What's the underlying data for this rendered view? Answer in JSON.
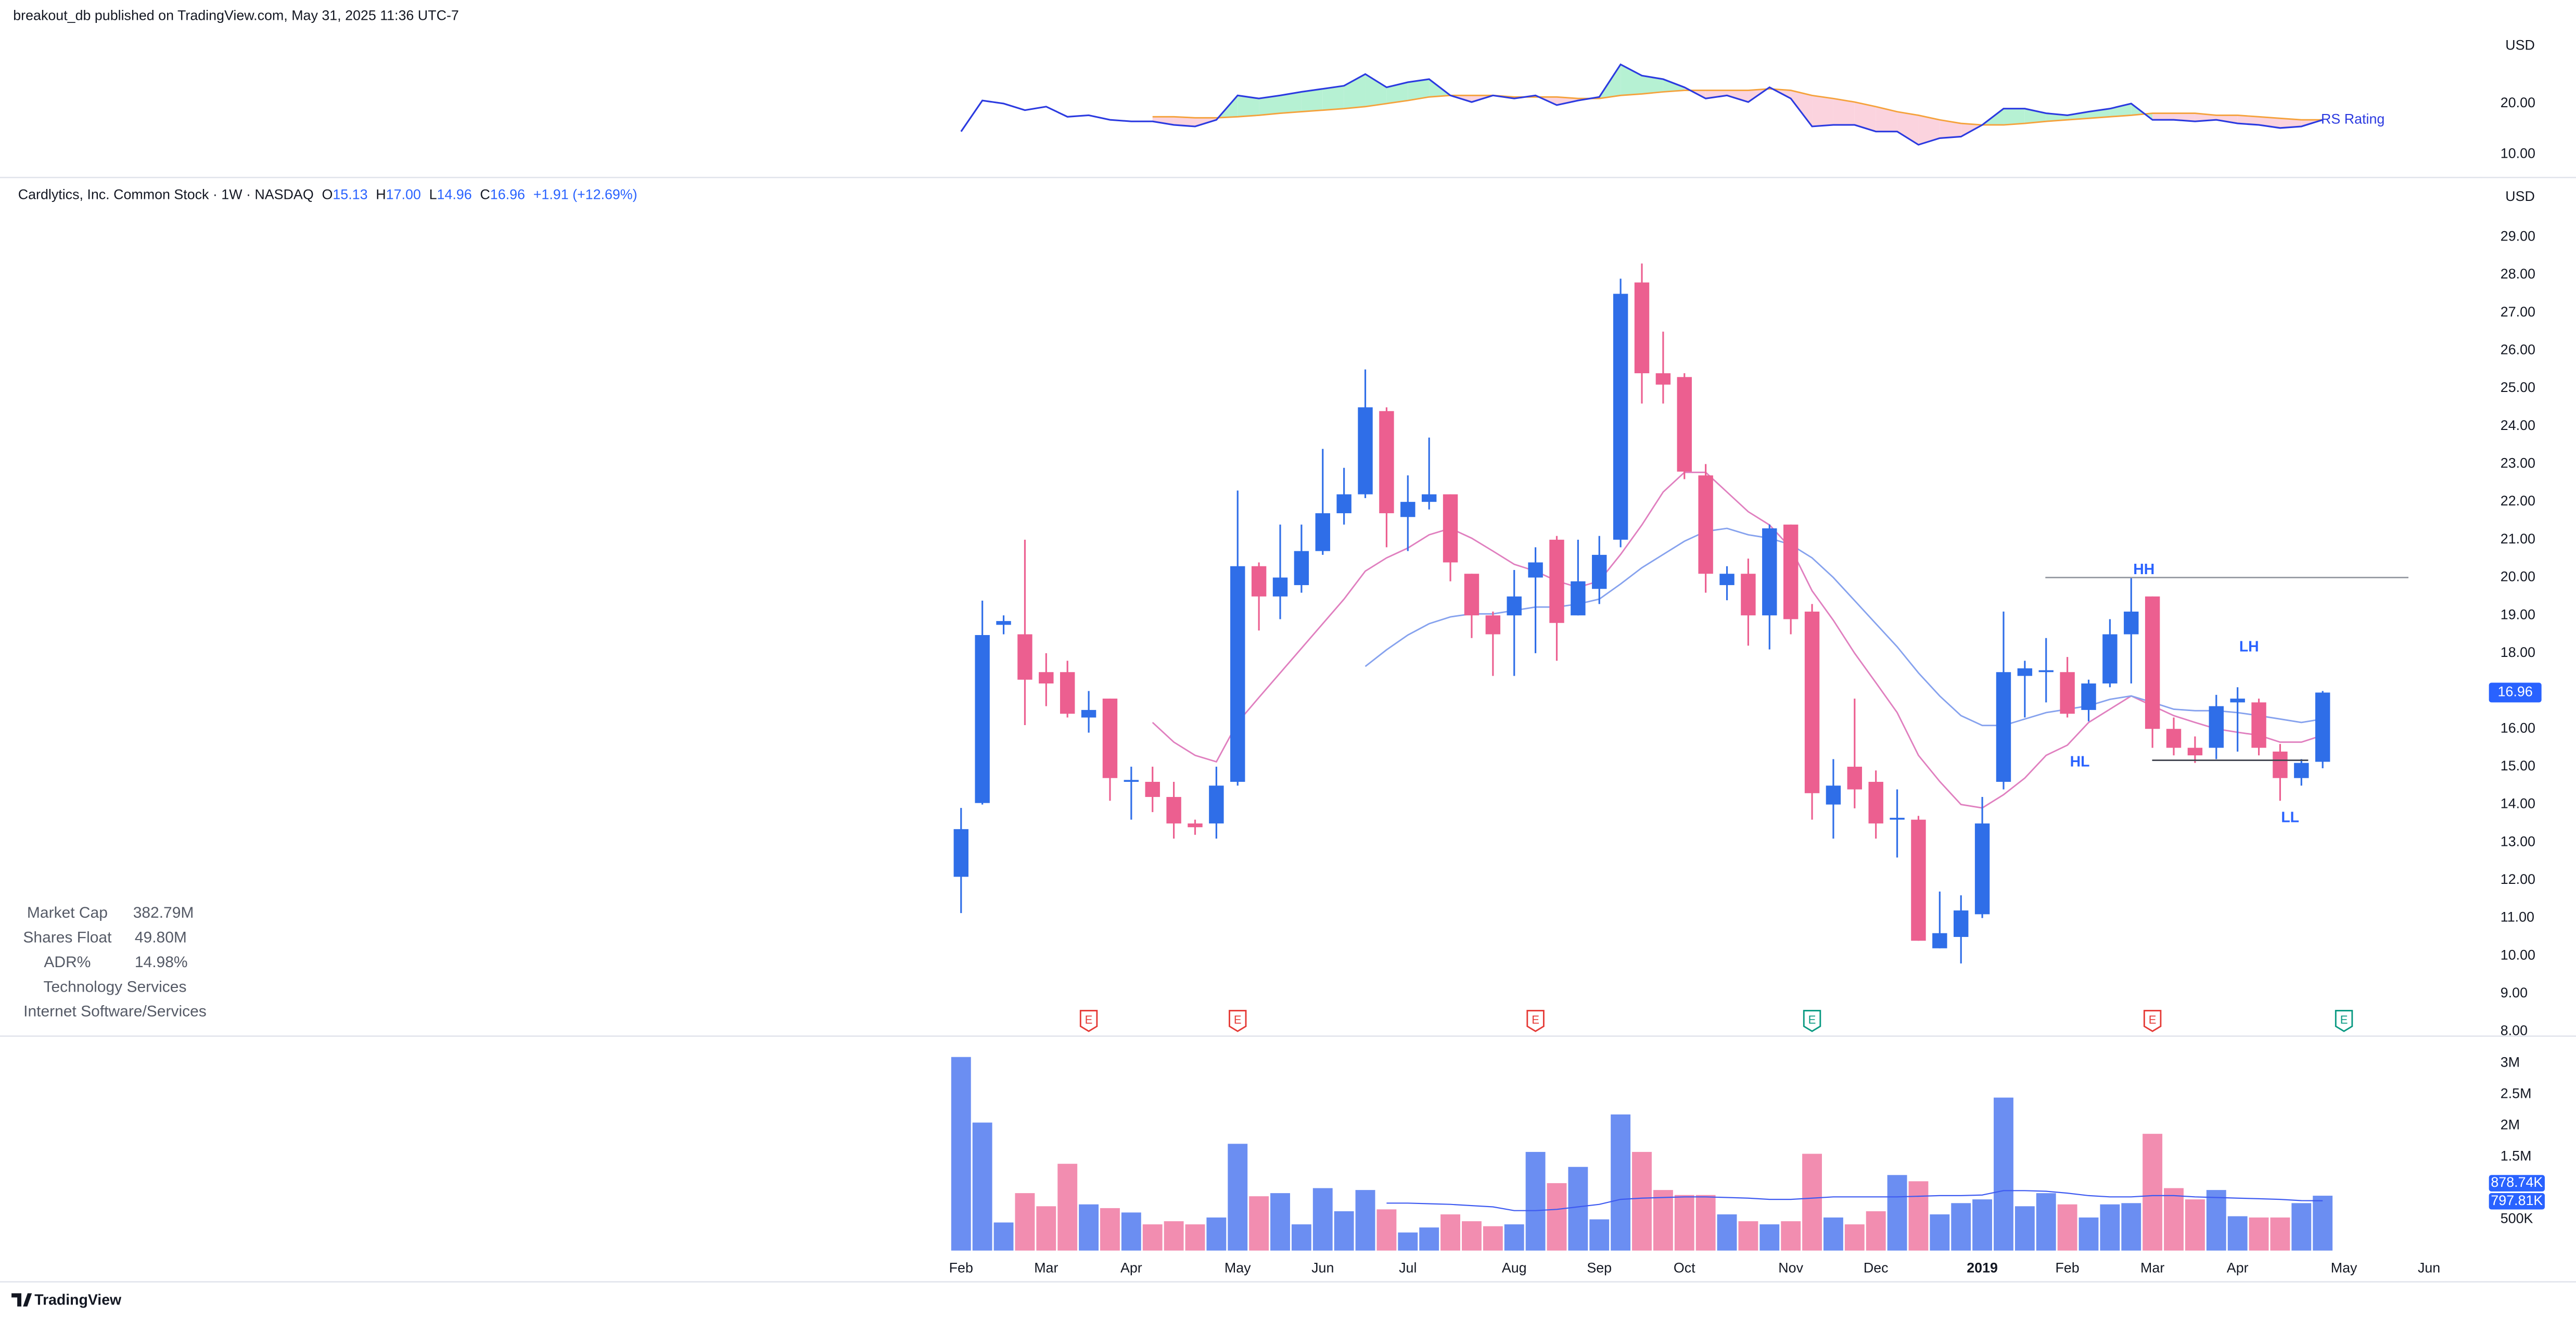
{
  "header": {
    "published": "breakout_db published on TradingView.com, May 31, 2025 11:36 UTC-7",
    "logo": "TradingView"
  },
  "stats": {
    "rows": [
      [
        "Market Cap",
        "382.79M"
      ],
      [
        "Shares Float",
        "49.80M"
      ],
      [
        "ADR%",
        "14.98%"
      ]
    ],
    "sector": "Technology Services",
    "industry": "Internet Software/Services"
  },
  "chart_data": [
    {
      "type": "candlestick",
      "title": "Cardlytics, Inc. Common Stock · 1W · NASDAQ",
      "currency": "USD",
      "legend": [
        {
          "label": "O",
          "value": "15.13"
        },
        {
          "label": "H",
          "value": "17.00"
        },
        {
          "label": "L",
          "value": "14.96"
        },
        {
          "label": "C",
          "value": "16.96"
        }
      ],
      "change": "+1.91 (+12.69%)",
      "categories": [
        "Feb",
        null,
        null,
        null,
        "Mar",
        null,
        null,
        null,
        "Apr",
        null,
        null,
        null,
        null,
        "May",
        null,
        null,
        null,
        "Jun",
        null,
        null,
        null,
        "Jul",
        null,
        null,
        null,
        null,
        "Aug",
        null,
        null,
        null,
        "Sep",
        null,
        null,
        null,
        "Oct",
        null,
        null,
        null,
        null,
        "Nov",
        null,
        null,
        null,
        "Dec",
        null,
        null,
        null,
        null,
        "2019",
        null,
        null,
        null,
        "Feb",
        null,
        null,
        null,
        "Mar",
        null,
        null,
        null,
        "Apr",
        null,
        null,
        null,
        null,
        "May",
        null,
        null,
        null,
        "Jun"
      ],
      "open": [
        12.09,
        14.04,
        18.75,
        18.5,
        17.5,
        17.5,
        16.3,
        16.8,
        14.6,
        14.6,
        14.2,
        13.5,
        13.5,
        14.6,
        20.3,
        19.5,
        19.8,
        20.7,
        21.7,
        22.2,
        24.4,
        21.6,
        22.0,
        22.2,
        20.1,
        19.0,
        19.0,
        20.0,
        21.0,
        19.0,
        19.7,
        21.0,
        27.8,
        25.4,
        25.3,
        22.7,
        19.8,
        20.1,
        19.0,
        21.4,
        19.1,
        14.0,
        15.0,
        14.6,
        13.6,
        13.6,
        10.2,
        10.5,
        11.1,
        14.6,
        17.4,
        17.5,
        17.5,
        16.5,
        17.2,
        18.5,
        19.5,
        16.0,
        15.5,
        15.5,
        16.7,
        16.7,
        15.4,
        14.7,
        15.13,
        null,
        null,
        null,
        null,
        null
      ],
      "high": [
        13.91,
        19.39,
        19.0,
        21.0,
        18.0,
        17.8,
        17.0,
        16.8,
        15.0,
        15.0,
        14.6,
        13.6,
        15.0,
        22.3,
        20.4,
        21.4,
        21.4,
        23.4,
        22.9,
        25.5,
        24.5,
        22.7,
        23.7,
        22.2,
        20.1,
        19.1,
        20.2,
        20.8,
        21.1,
        21.0,
        21.1,
        27.9,
        28.3,
        26.5,
        25.4,
        23.0,
        20.3,
        20.5,
        21.4,
        21.4,
        19.3,
        15.2,
        16.8,
        14.9,
        14.4,
        13.7,
        11.7,
        11.6,
        14.2,
        19.1,
        17.8,
        18.4,
        17.9,
        17.3,
        18.9,
        20.0,
        19.5,
        16.3,
        15.8,
        16.9,
        17.1,
        16.8,
        15.6,
        15.2,
        17.0,
        null,
        null,
        null,
        null,
        null
      ],
      "low": [
        11.13,
        14.0,
        18.5,
        16.1,
        16.6,
        16.3,
        15.9,
        14.1,
        13.6,
        13.8,
        13.1,
        13.2,
        13.1,
        14.5,
        18.6,
        18.9,
        19.6,
        20.6,
        21.4,
        22.1,
        20.8,
        20.7,
        21.8,
        19.9,
        18.4,
        17.4,
        17.4,
        18.0,
        17.8,
        19.0,
        19.3,
        20.8,
        24.6,
        24.6,
        22.6,
        19.6,
        19.4,
        18.2,
        18.1,
        18.5,
        13.6,
        13.1,
        13.9,
        13.1,
        12.6,
        10.4,
        10.2,
        9.8,
        11.0,
        14.4,
        16.3,
        16.7,
        16.3,
        16.2,
        17.1,
        17.2,
        15.5,
        15.3,
        15.1,
        15.2,
        15.4,
        15.3,
        14.1,
        14.5,
        14.96,
        null,
        null,
        null,
        null,
        null
      ],
      "close": [
        13.35,
        18.48,
        18.85,
        17.3,
        17.2,
        16.4,
        16.5,
        14.7,
        14.65,
        14.2,
        13.5,
        13.4,
        14.5,
        20.3,
        19.5,
        20.0,
        20.7,
        21.7,
        22.2,
        24.5,
        21.7,
        22.0,
        22.2,
        20.4,
        19.0,
        18.5,
        19.5,
        20.4,
        18.8,
        19.9,
        20.6,
        27.5,
        25.4,
        25.1,
        22.8,
        20.1,
        20.1,
        19.0,
        21.3,
        18.9,
        14.3,
        14.5,
        14.4,
        13.5,
        13.65,
        10.4,
        10.6,
        11.2,
        13.5,
        17.5,
        17.6,
        17.55,
        16.4,
        17.2,
        18.5,
        19.1,
        16.0,
        15.5,
        15.3,
        16.6,
        16.8,
        15.5,
        14.7,
        15.1,
        16.96,
        null,
        null,
        null,
        null,
        null
      ],
      "up_color": "#2f6ee8",
      "down_color": "#ec5f90",
      "moving_averages": [
        {
          "color": "#e07fbf",
          "values": [
            null,
            null,
            null,
            null,
            null,
            null,
            null,
            null,
            null,
            16.17,
            15.65,
            15.3,
            15.13,
            16.17,
            16.83,
            17.48,
            18.13,
            18.78,
            19.43,
            20.17,
            20.52,
            20.78,
            21.13,
            21.3,
            21.04,
            20.7,
            20.35,
            20.17,
            19.91,
            19.74,
            19.91,
            20.61,
            21.39,
            22.26,
            22.78,
            22.78,
            22.26,
            21.74,
            21.39,
            20.78,
            19.65,
            18.87,
            18.0,
            17.22,
            16.43,
            15.3,
            14.61,
            14.0,
            13.91,
            14.26,
            14.7,
            15.3,
            15.57,
            16.17,
            16.52,
            16.87,
            16.61,
            16.35,
            16.17,
            16.0,
            15.91,
            15.83,
            15.65,
            15.65,
            15.83,
            null,
            null,
            null,
            null,
            null
          ]
        },
        {
          "color": "#86a2ee",
          "values": [
            null,
            null,
            null,
            null,
            null,
            null,
            null,
            null,
            null,
            null,
            null,
            null,
            null,
            null,
            null,
            null,
            null,
            null,
            null,
            17.65,
            18.09,
            18.48,
            18.78,
            18.96,
            19.04,
            19.04,
            19.13,
            19.22,
            19.22,
            19.3,
            19.43,
            19.83,
            20.26,
            20.61,
            20.96,
            21.22,
            21.3,
            21.13,
            21.04,
            20.87,
            20.52,
            20.0,
            19.39,
            18.78,
            18.17,
            17.48,
            16.87,
            16.35,
            16.09,
            16.09,
            16.26,
            16.43,
            16.52,
            16.61,
            16.78,
            16.87,
            16.7,
            16.52,
            16.48,
            16.48,
            16.43,
            16.35,
            16.26,
            16.17,
            16.26,
            null,
            null,
            null,
            null,
            null
          ]
        }
      ],
      "annotations": [
        "HH",
        "LH",
        "HL",
        "LL"
      ],
      "annotation_color": "#2962ff",
      "levels": [
        {
          "value": 20.0,
          "color": "#9598a1"
        },
        {
          "value": 15.17,
          "color": "#434651"
        }
      ],
      "earnings": [
        {
          "label": "E",
          "week": 6,
          "color": "#e53935"
        },
        {
          "label": "E",
          "week": 13,
          "color": "#e53935"
        },
        {
          "label": "E",
          "week": 27,
          "color": "#e53935"
        },
        {
          "label": "E",
          "week": 40,
          "color": "#089981"
        },
        {
          "label": "E",
          "week": 56,
          "color": "#e53935"
        },
        {
          "label": "E",
          "week": 65,
          "color": "#089981"
        }
      ],
      "ylim": [
        7.9,
        30.4
      ],
      "yticks": [
        {
          "value": 8,
          "label": "8.00"
        },
        {
          "value": 9,
          "label": "9.00"
        },
        {
          "value": 10,
          "label": "10.00"
        },
        {
          "value": 11,
          "label": "11.00"
        },
        {
          "value": 12,
          "label": "12.00"
        },
        {
          "value": 13,
          "label": "13.00"
        },
        {
          "value": 14,
          "label": "14.00"
        },
        {
          "value": 15,
          "label": "15.00"
        },
        {
          "value": 16,
          "label": "16.00"
        },
        {
          "value": 17,
          "label": "17.00"
        },
        {
          "value": 18,
          "label": "18.00"
        },
        {
          "value": 19,
          "label": "19.00"
        },
        {
          "value": 20,
          "label": "20.00"
        },
        {
          "value": 21,
          "label": "21.00"
        },
        {
          "value": 22,
          "label": "22.00"
        },
        {
          "value": 23,
          "label": "23.00"
        },
        {
          "value": 24,
          "label": "24.00"
        },
        {
          "value": 25,
          "label": "25.00"
        },
        {
          "value": 26,
          "label": "26.00"
        },
        {
          "value": 27,
          "label": "27.00"
        },
        {
          "value": 28,
          "label": "28.00"
        },
        {
          "value": 29,
          "label": "29.00"
        }
      ],
      "badge_color": "#2962ff"
    },
    {
      "type": "bar",
      "values": [
        3100000,
        2050000,
        450000,
        920000,
        710000,
        1390000,
        740000,
        680000,
        610000,
        420000,
        470000,
        420000,
        530000,
        1710000,
        870000,
        920000,
        420000,
        1000000,
        630000,
        970000,
        660000,
        290000,
        370000,
        580000,
        470000,
        390000,
        420000,
        1580000,
        1080000,
        1340000,
        500000,
        2180000,
        1580000,
        970000,
        890000,
        890000,
        580000,
        470000,
        420000,
        470000,
        1550000,
        530000,
        420000,
        630000,
        1210000,
        1110000,
        580000,
        760000,
        820000,
        2450000,
        710000,
        920000,
        740000,
        530000,
        740000,
        760000,
        1870000,
        1000000,
        820000,
        970000,
        550000,
        530000,
        530000,
        760000,
        878740,
        null,
        null,
        null,
        null,
        null
      ],
      "up_color": "#6b8ef2",
      "down_color": "#f28db0",
      "average": {
        "color": "#3d5af1",
        "values": [
          null,
          null,
          null,
          null,
          null,
          null,
          null,
          null,
          null,
          null,
          null,
          null,
          null,
          null,
          null,
          null,
          null,
          null,
          null,
          null,
          760000,
          760000,
          750000,
          740000,
          720000,
          700000,
          640000,
          640000,
          660000,
          700000,
          740000,
          820000,
          840000,
          850000,
          860000,
          860000,
          850000,
          840000,
          820000,
          820000,
          840000,
          860000,
          860000,
          860000,
          860000,
          870000,
          880000,
          880000,
          890000,
          960000,
          960000,
          950000,
          920000,
          880000,
          860000,
          860000,
          880000,
          880000,
          860000,
          850000,
          840000,
          830000,
          820000,
          800000,
          797810,
          null,
          null,
          null,
          null,
          null
        ]
      },
      "badges": [
        {
          "value": 878740,
          "label": "878.74K",
          "color": "#2962ff"
        },
        {
          "value": 797810,
          "label": "797.81K",
          "color": "#2962ff"
        }
      ],
      "ylim": [
        0,
        3400000
      ],
      "yticks": [
        {
          "value": 500000,
          "label": "500K"
        },
        {
          "value": 1500000,
          "label": "1.5M"
        },
        {
          "value": 2000000,
          "label": "2M"
        },
        {
          "value": 2500000,
          "label": "2.5M"
        },
        {
          "value": 3000000,
          "label": "3M"
        }
      ]
    },
    {
      "type": "line",
      "currency": "USD",
      "series": [
        {
          "name": "RS Rating",
          "color": "#2b3ae0",
          "values": [
            14.5,
            20.6,
            20,
            18.7,
            19.4,
            17.4,
            17.7,
            16.8,
            16.5,
            16.5,
            15.8,
            15.5,
            16.8,
            21.6,
            21,
            21.6,
            22.3,
            22.9,
            23.5,
            25.8,
            23.2,
            24.2,
            24.8,
            21.6,
            20.3,
            21.6,
            21,
            21.6,
            19.7,
            20.6,
            21.3,
            27.7,
            25.5,
            24.8,
            23.2,
            21,
            21.6,
            20.3,
            23.2,
            21,
            15.5,
            15.8,
            15.8,
            14.5,
            14.5,
            11.9,
            13.2,
            13.5,
            15.8,
            19,
            19,
            18.1,
            17.7,
            18.4,
            19,
            20,
            16.8,
            16.8,
            16.5,
            16.8,
            16.1,
            15.8,
            15.2,
            15.5,
            16.8,
            null,
            null,
            null,
            null,
            null
          ]
        }
      ],
      "average": {
        "color": "#f5a23c",
        "fill_above": "#b6f1d3",
        "fill_below": "#fbd3de",
        "values": [
          null,
          null,
          null,
          null,
          null,
          null,
          null,
          null,
          null,
          17.4,
          17.4,
          17.2,
          17.2,
          17.4,
          17.7,
          18.1,
          18.4,
          18.7,
          19.0,
          19.4,
          20.0,
          20.6,
          21.3,
          21.6,
          21.6,
          21.6,
          21.3,
          21.3,
          21.3,
          21.0,
          21.0,
          21.6,
          21.9,
          22.3,
          22.6,
          22.6,
          22.6,
          22.6,
          22.9,
          22.6,
          21.6,
          21.0,
          20.3,
          19.4,
          18.4,
          17.7,
          16.8,
          16.1,
          15.8,
          15.8,
          16.1,
          16.5,
          16.8,
          17.1,
          17.4,
          17.7,
          18.1,
          18.1,
          18.1,
          17.7,
          17.7,
          17.4,
          17.1,
          16.8,
          16.8,
          null,
          null,
          null,
          null,
          null
        ]
      },
      "ylim": [
        6.1,
        33.9
      ],
      "yticks": [
        {
          "value": 10,
          "label": "10.00"
        },
        {
          "value": 20,
          "label": "20.00"
        }
      ]
    }
  ]
}
